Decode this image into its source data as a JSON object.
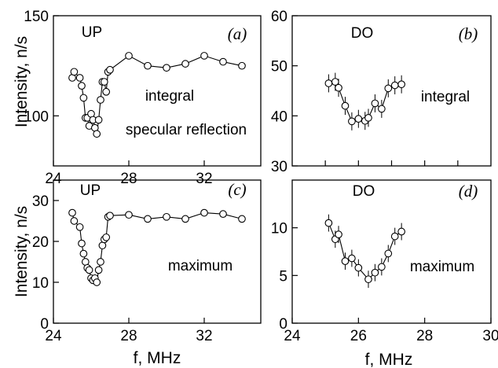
{
  "shared_labels": {
    "ylabel": "Intensity, n/s",
    "xlabel": "f, MHz"
  },
  "chart_data": [
    {
      "type": "scatter",
      "id": "a",
      "panel_label": "(a)",
      "mode_label": "UP",
      "notes": [
        "integral",
        "specular reflection"
      ],
      "xlim": [
        24,
        35
      ],
      "ylim": [
        75,
        150
      ],
      "xticks": [
        24,
        28,
        32
      ],
      "yticks": [
        100,
        150
      ],
      "error_bars": false,
      "series": [
        {
          "x": [
            25.0,
            25.1,
            25.4,
            25.5,
            25.6,
            25.7,
            25.8,
            25.9,
            26.0,
            26.1,
            26.2,
            26.3,
            26.4,
            26.5,
            26.6,
            26.7,
            26.8,
            26.9,
            27.0,
            28.0,
            29.0,
            30.0,
            31.0,
            32.0,
            33.0,
            34.0
          ],
          "y": [
            119,
            122,
            119,
            115,
            109,
            99,
            99,
            95,
            101,
            98,
            94,
            91,
            98,
            108,
            117,
            117,
            112,
            122,
            123,
            130,
            125,
            124,
            126,
            130,
            127,
            125
          ]
        }
      ]
    },
    {
      "type": "scatter",
      "id": "b",
      "panel_label": "(b)",
      "mode_label": "DO",
      "notes": [
        "integral"
      ],
      "xlim": [
        24,
        30
      ],
      "ylim": [
        30,
        60
      ],
      "xticks": [],
      "yticks": [
        30,
        40,
        50,
        60
      ],
      "error_bars": true,
      "series": [
        {
          "x": [
            25.1,
            25.3,
            25.4,
            25.6,
            25.8,
            26.0,
            26.2,
            26.3,
            26.5,
            26.7,
            26.9,
            27.1,
            27.3
          ],
          "y": [
            46.5,
            46.8,
            45.6,
            42.0,
            38.9,
            39.4,
            39.0,
            39.6,
            42.5,
            41.4,
            45.5,
            46.1,
            46.3
          ],
          "err": [
            1.8,
            1.8,
            1.8,
            1.8,
            1.8,
            1.8,
            1.8,
            1.8,
            1.8,
            1.8,
            1.8,
            1.8,
            1.8
          ]
        }
      ]
    },
    {
      "type": "scatter",
      "id": "c",
      "panel_label": "(c)",
      "mode_label": "UP",
      "notes": [
        "maximum"
      ],
      "xlim": [
        24,
        35
      ],
      "ylim": [
        0,
        35
      ],
      "xticks": [
        24,
        28,
        32
      ],
      "yticks": [
        0,
        10,
        20,
        30
      ],
      "error_bars": false,
      "series": [
        {
          "x": [
            25.0,
            25.1,
            25.4,
            25.5,
            25.6,
            25.7,
            25.8,
            25.9,
            26.0,
            26.1,
            26.2,
            26.3,
            26.4,
            26.5,
            26.6,
            26.7,
            26.8,
            26.9,
            27.0,
            28.0,
            29.0,
            30.0,
            31.0,
            32.0,
            33.0,
            34.0
          ],
          "y": [
            27,
            25,
            23.5,
            19.5,
            17,
            15,
            13.5,
            13,
            11,
            10.5,
            11,
            10,
            13,
            15,
            19,
            20.5,
            21,
            26,
            26.3,
            26.5,
            25.5,
            26,
            25.5,
            27,
            26.7,
            25.5
          ]
        }
      ]
    },
    {
      "type": "scatter",
      "id": "d",
      "panel_label": "(d)",
      "mode_label": "DO",
      "notes": [
        "maximum"
      ],
      "xlim": [
        24,
        30
      ],
      "ylim": [
        0,
        15
      ],
      "xticks": [
        24,
        26,
        28,
        30
      ],
      "yticks": [
        0,
        5,
        10
      ],
      "error_bars": true,
      "series": [
        {
          "x": [
            25.1,
            25.3,
            25.4,
            25.6,
            25.8,
            26.0,
            26.3,
            26.5,
            26.7,
            26.9,
            27.1,
            27.3
          ],
          "y": [
            10.5,
            8.8,
            9.3,
            6.5,
            6.8,
            5.8,
            4.6,
            5.3,
            5.9,
            7.3,
            9.1,
            9.6
          ],
          "err": [
            0.9,
            0.9,
            0.9,
            0.9,
            0.9,
            0.9,
            0.9,
            0.9,
            0.9,
            0.9,
            0.9,
            0.9
          ]
        }
      ]
    }
  ]
}
